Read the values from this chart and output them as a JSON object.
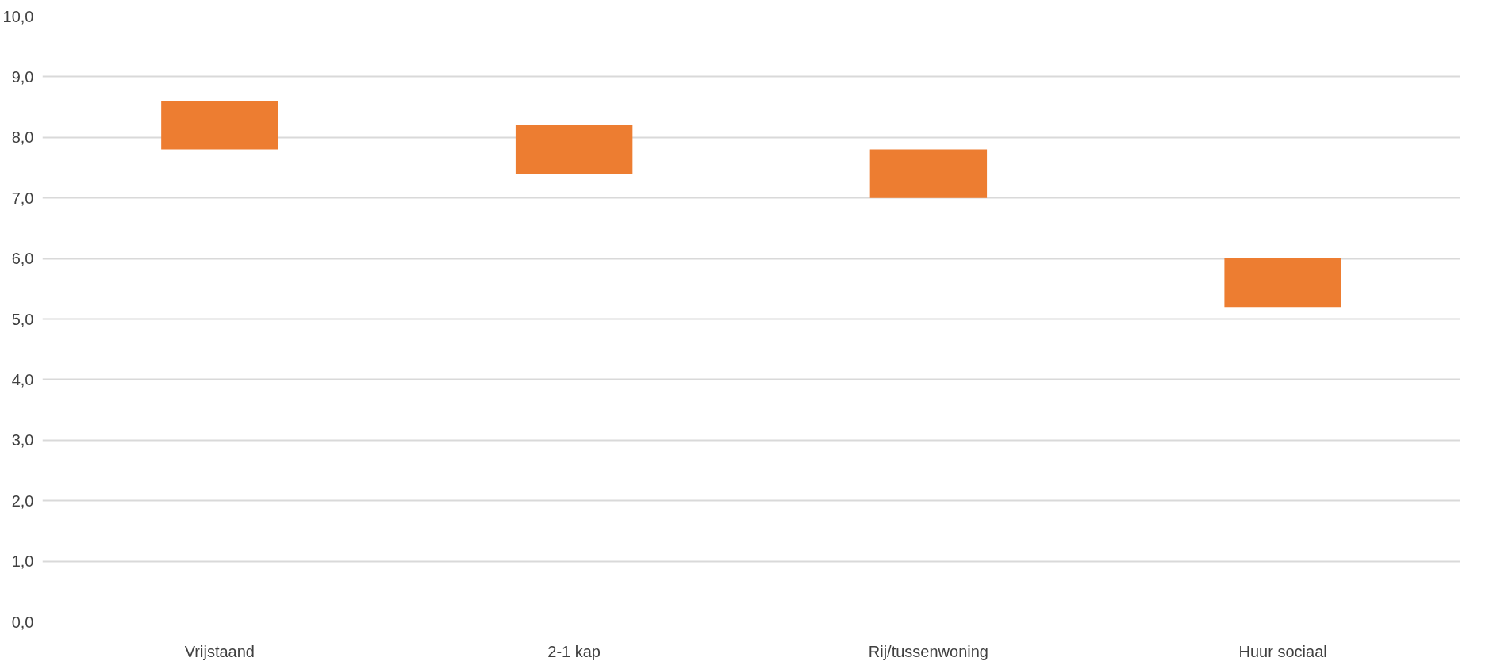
{
  "chart_data": {
    "type": "bar",
    "categories": [
      "Vrijstaand",
      "2-1 kap",
      "Rij/tussenwoning",
      "Huur sociaal"
    ],
    "values": [
      0.8,
      0.8,
      0.8,
      0.8
    ],
    "base": [
      7.8,
      7.4,
      7.0,
      5.2
    ],
    "color": "#ed7d31",
    "ylim": [
      0,
      10
    ],
    "yticks": [
      {
        "value": 0,
        "label": "0,0"
      },
      {
        "value": 1,
        "label": "1,0"
      },
      {
        "value": 2,
        "label": "2,0"
      },
      {
        "value": 3,
        "label": "3,0"
      },
      {
        "value": 4,
        "label": "4,0"
      },
      {
        "value": 5,
        "label": "5,0"
      },
      {
        "value": 6,
        "label": "6,0"
      },
      {
        "value": 7,
        "label": "7,0"
      },
      {
        "value": 8,
        "label": "8,0"
      },
      {
        "value": 9,
        "label": "9,0"
      },
      {
        "value": 10,
        "label": "10,0"
      }
    ],
    "grid": "y"
  }
}
